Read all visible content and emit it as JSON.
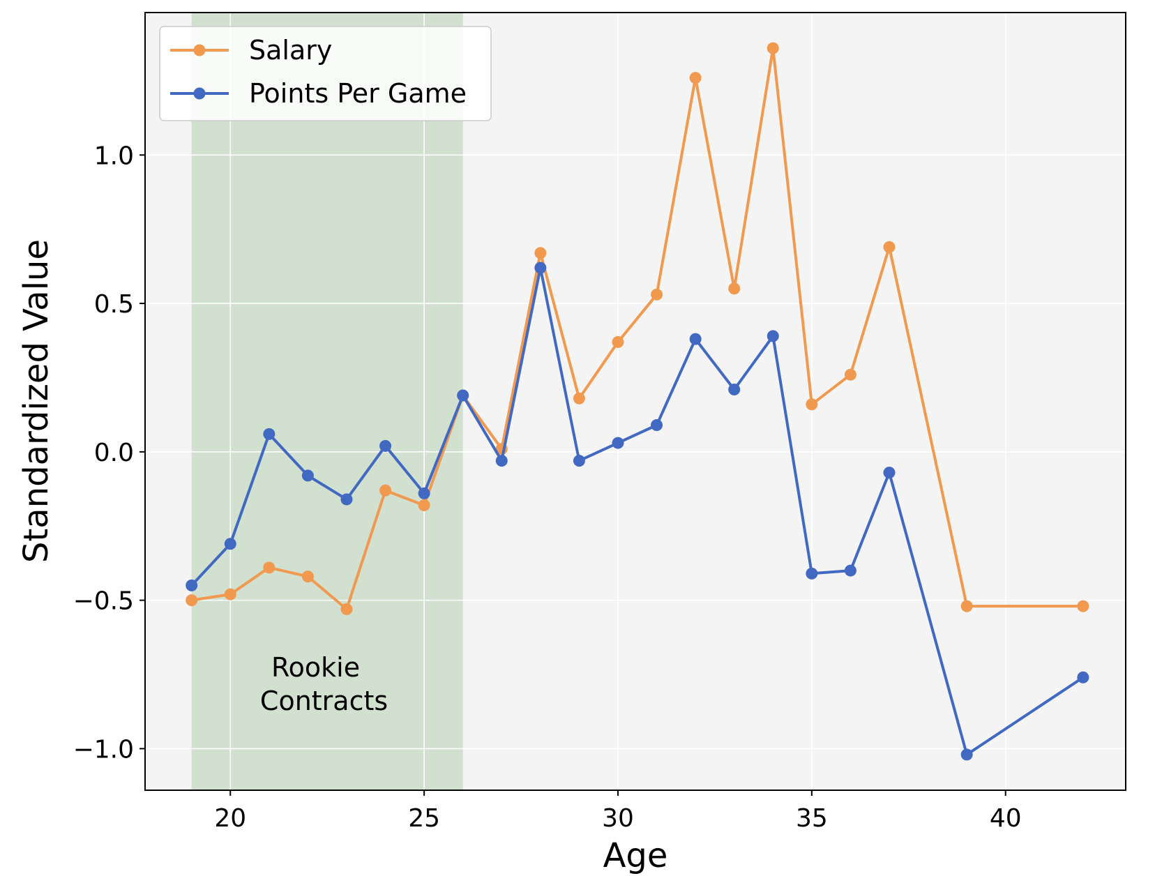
{
  "chart_data": {
    "type": "line",
    "xlabel": "Age",
    "ylabel": "Standardized Value",
    "xlim": [
      17.8,
      43.1
    ],
    "ylim": [
      -1.14,
      1.48
    ],
    "x_ticks": [
      20,
      25,
      30,
      35,
      40
    ],
    "y_ticks": [
      -1.0,
      -0.5,
      0.0,
      0.5,
      1.0
    ],
    "x_tick_labels": [
      "20",
      "25",
      "30",
      "35",
      "40"
    ],
    "y_tick_labels": [
      "−1.0",
      "−0.5",
      "0.0",
      "0.5",
      "1.0"
    ],
    "grid": true,
    "legend_position": "upper-left",
    "x": [
      19,
      20,
      21,
      22,
      23,
      24,
      25,
      26,
      27,
      28,
      29,
      30,
      31,
      32,
      33,
      34,
      35,
      36,
      37,
      39,
      42
    ],
    "series": [
      {
        "name": "Salary",
        "color": "#F0994F",
        "values": [
          -0.5,
          -0.48,
          -0.39,
          -0.42,
          -0.53,
          -0.13,
          -0.18,
          0.19,
          0.01,
          0.67,
          0.18,
          0.37,
          0.53,
          1.26,
          0.55,
          1.36,
          0.16,
          0.26,
          0.69,
          -0.52,
          -0.52
        ]
      },
      {
        "name": "Points Per Game",
        "color": "#4169C1",
        "values": [
          -0.45,
          -0.31,
          0.06,
          -0.08,
          -0.16,
          0.02,
          -0.14,
          0.19,
          -0.03,
          0.62,
          -0.03,
          0.03,
          0.09,
          0.38,
          0.21,
          0.39,
          -0.41,
          -0.4,
          -0.07,
          -1.02,
          -0.76
        ]
      }
    ],
    "shaded_region": {
      "x_range": [
        19,
        26
      ],
      "color": "#B5CFB0",
      "label_lines": [
        "Rookie",
        "Contracts"
      ],
      "label_anchor": [
        24.0,
        -0.78
      ]
    },
    "colors": {
      "plot_background": "#F4F4F4",
      "grid": "#FFFFFF",
      "axes": "#000000"
    }
  }
}
